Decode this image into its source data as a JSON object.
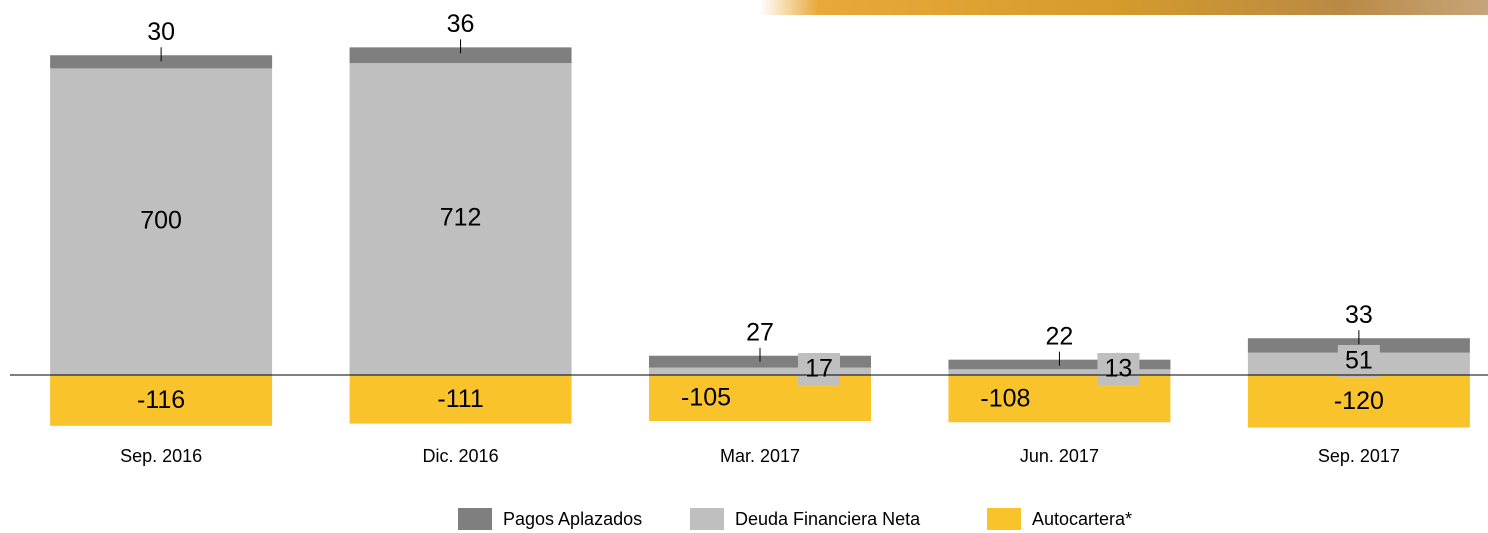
{
  "chart_data": {
    "type": "stacked_bar",
    "categories": [
      "Sep. 2016",
      "Dic. 2016",
      "Mar. 2017",
      "Jun. 2017",
      "Sep. 2017"
    ],
    "series": [
      {
        "name": "Pagos Aplazados",
        "color": "#7f7f7f",
        "values": [
          30,
          36,
          27,
          22,
          33
        ]
      },
      {
        "name": "Deuda Financiera Neta",
        "color": "#bfbfbf",
        "values": [
          700,
          712,
          17,
          13,
          51
        ]
      },
      {
        "name": "Autocartera*",
        "color": "#f9c32b",
        "values": [
          -116,
          -111,
          -105,
          -108,
          -120
        ]
      }
    ],
    "ylim": [
      -200,
      800
    ]
  }
}
